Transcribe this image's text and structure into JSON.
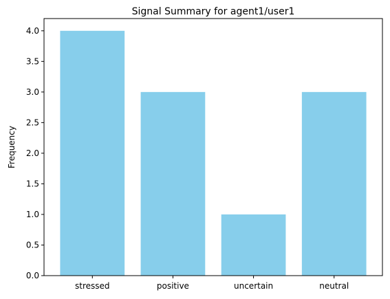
{
  "chart_data": {
    "type": "bar",
    "title": "Signal Summary for agent1/user1",
    "xlabel": "",
    "ylabel": "Frequency",
    "categories": [
      "stressed",
      "positive",
      "uncertain",
      "neutral"
    ],
    "values": [
      4,
      3,
      1,
      3
    ],
    "ylim": [
      0,
      4.2
    ],
    "yticks": [
      "0.0",
      "0.5",
      "1.0",
      "1.5",
      "2.0",
      "2.5",
      "3.0",
      "3.5",
      "4.0"
    ],
    "ytick_values": [
      0,
      0.5,
      1,
      1.5,
      2,
      2.5,
      3,
      3.5,
      4
    ],
    "bar_color": "#87ceeb",
    "grid": false
  }
}
